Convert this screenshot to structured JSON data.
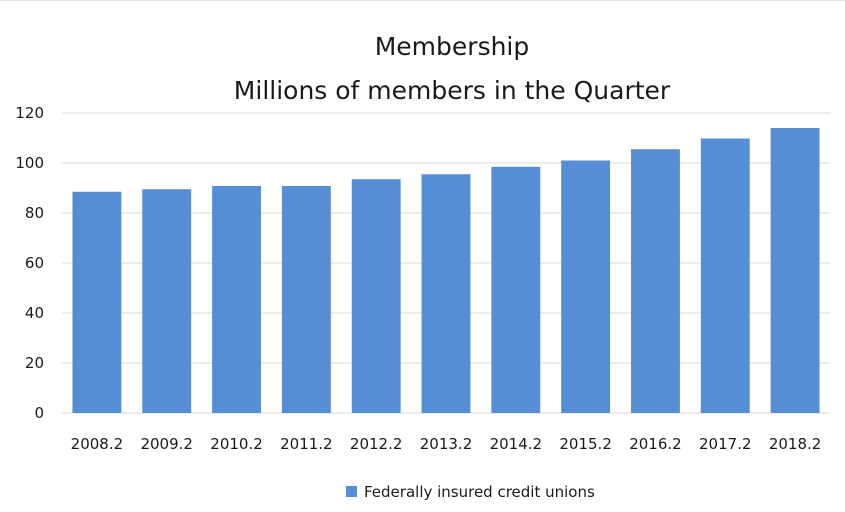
{
  "chart_data": {
    "type": "bar",
    "title": "Membership",
    "subtitle": "Millions of members in the Quarter",
    "xlabel": "",
    "ylabel": "",
    "categories": [
      "2008.2",
      "2009.2",
      "2010.2",
      "2011.2",
      "2012.2",
      "2013.2",
      "2014.2",
      "2015.2",
      "2016.2",
      "2017.2",
      "2018.2"
    ],
    "series": [
      {
        "name": "Federally insured credit unions",
        "values": [
          88.5,
          89.5,
          90.8,
          90.8,
          93.5,
          95.5,
          98.5,
          101,
          105.5,
          109.8,
          114
        ],
        "color": "#558ed5"
      }
    ],
    "ylim": [
      0,
      120
    ],
    "yticks": [
      0,
      20,
      40,
      60,
      80,
      100,
      120
    ],
    "grid": true,
    "gridColor": "#d9d9d9",
    "legend_position": "bottom"
  }
}
